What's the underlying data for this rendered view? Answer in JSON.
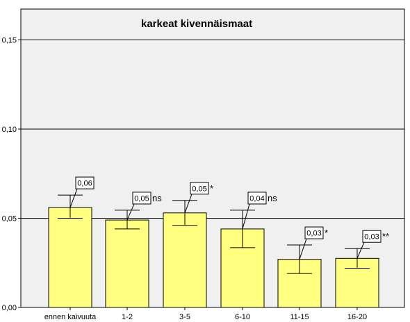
{
  "chart_data": {
    "type": "bar",
    "title": "karkeat kivennäismaat",
    "xlabel": "",
    "ylabel": "",
    "categories": [
      "ennen kaivuuta",
      "1-2",
      "3-5",
      "6-10",
      "11-15",
      "16-20"
    ],
    "values": [
      0.056,
      0.049,
      0.053,
      0.044,
      0.027,
      0.0275
    ],
    "error_low": [
      0.05,
      0.044,
      0.046,
      0.0335,
      0.019,
      0.022
    ],
    "error_high": [
      0.063,
      0.0545,
      0.06,
      0.0545,
      0.035,
      0.033
    ],
    "data_labels": [
      "0,06",
      "0,05",
      "0,05",
      "0,04",
      "0,03",
      "0,03"
    ],
    "significance": [
      "",
      "ns",
      "*",
      "ns",
      "*",
      "**"
    ],
    "ylim": [
      0,
      0.16
    ],
    "yticks": [
      0,
      0.05,
      0.1,
      0.15
    ],
    "ytick_labels": [
      "0,00",
      "0,05",
      "0,10",
      "0,15"
    ],
    "grid": "horizontal",
    "colors": {
      "bar_fill": "#ffff80",
      "bar_stroke": "#000000",
      "plot_background": "#f0f0f0",
      "gridline": "#000000",
      "label_box_fill": "#ffffff"
    }
  }
}
